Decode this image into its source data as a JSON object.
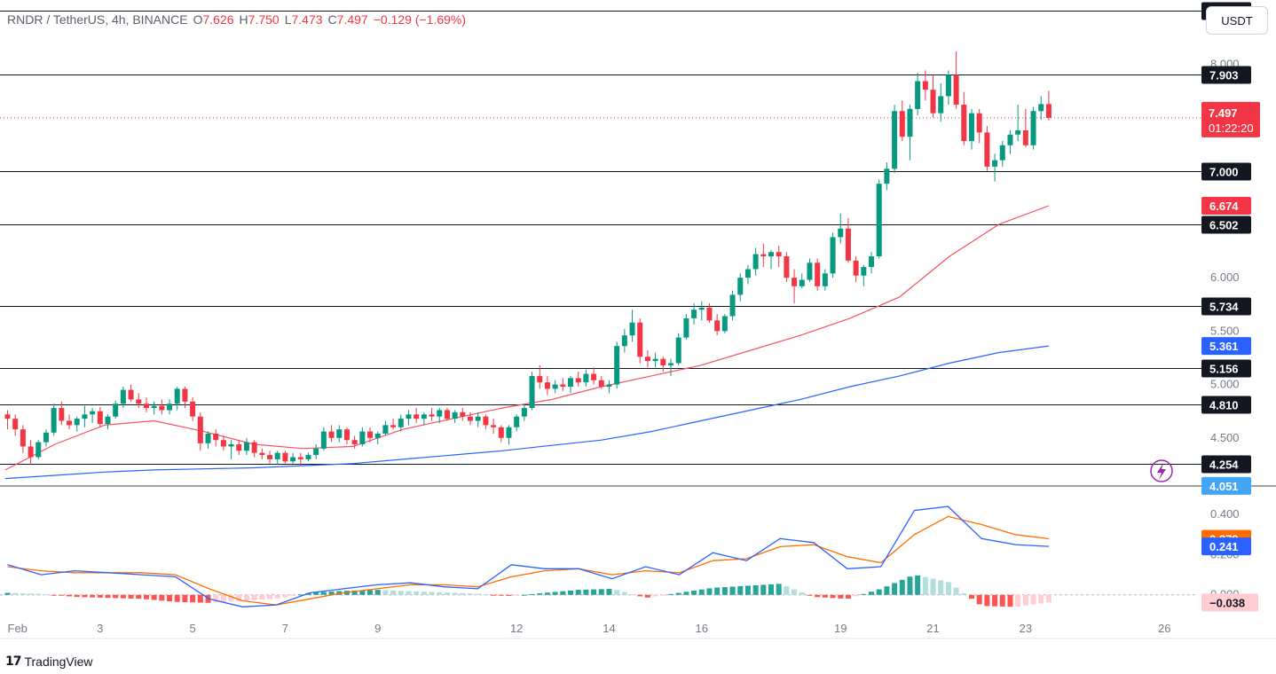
{
  "header": {
    "symbol": "RNDR / TetherUS, 4h, BINANCE",
    "open_label": "O",
    "open": "7.626",
    "high_label": "H",
    "high": "7.750",
    "low_label": "L",
    "low": "7.473",
    "close_label": "C",
    "close": "7.497",
    "change": "−0.129 (−1.69%)"
  },
  "currency_button": "USDT",
  "footer": {
    "logo_mark": "17",
    "brand": "TradingView"
  },
  "colors": {
    "up": "#089981",
    "down": "#f23645",
    "ema_short": "#f7525f",
    "ema_long": "#2962ff",
    "macd": "#2962ff",
    "signal": "#ff6d00",
    "hist_up": "#26a69a",
    "hist_down": "#ff5252",
    "hist_up_light": "#b2dfdb",
    "hist_down_light": "#ffcdd2"
  },
  "icons": {
    "alert": "lightning-icon"
  },
  "chart_data": {
    "type": "candlestick",
    "price_axis": {
      "ticks": [
        "8.000",
        "6.000",
        "5.500",
        "5.000",
        "4.500"
      ],
      "range": [
        4.05,
        8.6
      ]
    },
    "x_ticks": [
      {
        "label": "Feb",
        "idx": 0
      },
      {
        "label": "3",
        "idx": 12
      },
      {
        "label": "5",
        "idx": 24
      },
      {
        "label": "7",
        "idx": 36
      },
      {
        "label": "9",
        "idx": 48
      },
      {
        "label": "12",
        "idx": 66
      },
      {
        "label": "14",
        "idx": 78
      },
      {
        "label": "16",
        "idx": 90
      },
      {
        "label": "19",
        "idx": 108
      },
      {
        "label": "21",
        "idx": 120
      },
      {
        "label": "23",
        "idx": 132
      },
      {
        "label": "26",
        "idx": 150
      }
    ],
    "horizontal_levels": [
      {
        "value": 8.5,
        "label": "8.500"
      },
      {
        "value": 7.903,
        "label": "7.903"
      },
      {
        "value": 7.0,
        "label": "7.000"
      },
      {
        "value": 6.502,
        "label": "6.502"
      },
      {
        "value": 5.734,
        "label": "5.734"
      },
      {
        "value": 5.156,
        "label": "5.156"
      },
      {
        "value": 4.81,
        "label": "4.810"
      },
      {
        "value": 4.254,
        "label": "4.254"
      }
    ],
    "price_tags": [
      {
        "value": 7.497,
        "label": "7.497",
        "sublabel": "01:22:20",
        "kind": "last"
      },
      {
        "value": 6.674,
        "label": "6.674",
        "kind": "ema_short"
      },
      {
        "value": 5.361,
        "label": "5.361",
        "kind": "ema_long"
      },
      {
        "value": 4.051,
        "label": "4.051",
        "kind": "low"
      }
    ],
    "candles": [
      [
        4.72,
        4.76,
        4.58,
        4.68
      ],
      [
        4.68,
        4.72,
        4.52,
        4.58
      ],
      [
        4.58,
        4.62,
        4.36,
        4.42
      ],
      [
        4.42,
        4.48,
        4.25,
        4.32
      ],
      [
        4.32,
        4.48,
        4.3,
        4.46
      ],
      [
        4.46,
        4.58,
        4.42,
        4.55
      ],
      [
        4.55,
        4.82,
        4.52,
        4.78
      ],
      [
        4.78,
        4.84,
        4.62,
        4.66
      ],
      [
        4.66,
        4.72,
        4.58,
        4.62
      ],
      [
        4.62,
        4.7,
        4.56,
        4.68
      ],
      [
        4.68,
        4.8,
        4.6,
        4.72
      ],
      [
        4.72,
        4.78,
        4.64,
        4.75
      ],
      [
        4.75,
        4.79,
        4.6,
        4.63
      ],
      [
        4.63,
        4.72,
        4.58,
        4.7
      ],
      [
        4.7,
        4.85,
        4.68,
        4.82
      ],
      [
        4.82,
        4.98,
        4.78,
        4.95
      ],
      [
        4.95,
        5.0,
        4.84,
        4.86
      ],
      [
        4.86,
        4.92,
        4.78,
        4.82
      ],
      [
        4.82,
        4.88,
        4.74,
        4.78
      ],
      [
        4.78,
        4.84,
        4.72,
        4.8
      ],
      [
        4.8,
        4.86,
        4.72,
        4.76
      ],
      [
        4.76,
        4.86,
        4.72,
        4.82
      ],
      [
        4.82,
        4.98,
        4.76,
        4.96
      ],
      [
        4.96,
        4.98,
        4.78,
        4.84
      ],
      [
        4.84,
        4.88,
        4.66,
        4.7
      ],
      [
        4.7,
        4.74,
        4.38,
        4.45
      ],
      [
        4.45,
        4.56,
        4.4,
        4.54
      ],
      [
        4.54,
        4.58,
        4.42,
        4.48
      ],
      [
        4.48,
        4.52,
        4.38,
        4.42
      ],
      [
        4.42,
        4.48,
        4.3,
        4.44
      ],
      [
        4.44,
        4.48,
        4.34,
        4.38
      ],
      [
        4.38,
        4.5,
        4.34,
        4.46
      ],
      [
        4.46,
        4.48,
        4.32,
        4.36
      ],
      [
        4.36,
        4.4,
        4.3,
        4.34
      ],
      [
        4.34,
        4.38,
        4.26,
        4.3
      ],
      [
        4.3,
        4.38,
        4.25,
        4.36
      ],
      [
        4.36,
        4.38,
        4.26,
        4.28
      ],
      [
        4.28,
        4.36,
        4.26,
        4.32
      ],
      [
        4.32,
        4.36,
        4.24,
        4.3
      ],
      [
        4.3,
        4.36,
        4.28,
        4.34
      ],
      [
        4.34,
        4.44,
        4.3,
        4.4
      ],
      [
        4.4,
        4.6,
        4.38,
        4.56
      ],
      [
        4.56,
        4.62,
        4.46,
        4.5
      ],
      [
        4.5,
        4.62,
        4.46,
        4.58
      ],
      [
        4.58,
        4.6,
        4.44,
        4.48
      ],
      [
        4.48,
        4.52,
        4.4,
        4.44
      ],
      [
        4.44,
        4.6,
        4.42,
        4.56
      ],
      [
        4.56,
        4.6,
        4.46,
        4.5
      ],
      [
        4.5,
        4.56,
        4.44,
        4.54
      ],
      [
        4.54,
        4.66,
        4.52,
        4.62
      ],
      [
        4.62,
        4.68,
        4.58,
        4.6
      ],
      [
        4.6,
        4.72,
        4.56,
        4.68
      ],
      [
        4.68,
        4.76,
        4.62,
        4.72
      ],
      [
        4.72,
        4.78,
        4.64,
        4.68
      ],
      [
        4.68,
        4.74,
        4.62,
        4.72
      ],
      [
        4.72,
        4.78,
        4.66,
        4.7
      ],
      [
        4.7,
        4.78,
        4.64,
        4.76
      ],
      [
        4.76,
        4.78,
        4.66,
        4.68
      ],
      [
        4.68,
        4.76,
        4.64,
        4.74
      ],
      [
        4.74,
        4.78,
        4.66,
        4.7
      ],
      [
        4.7,
        4.74,
        4.62,
        4.66
      ],
      [
        4.66,
        4.74,
        4.6,
        4.7
      ],
      [
        4.7,
        4.72,
        4.58,
        4.62
      ],
      [
        4.62,
        4.68,
        4.54,
        4.6
      ],
      [
        4.6,
        4.62,
        4.46,
        4.5
      ],
      [
        4.5,
        4.62,
        4.44,
        4.6
      ],
      [
        4.6,
        4.72,
        4.56,
        4.7
      ],
      [
        4.7,
        4.82,
        4.66,
        4.78
      ],
      [
        4.78,
        5.12,
        4.76,
        5.08
      ],
      [
        5.08,
        5.18,
        4.96,
        5.02
      ],
      [
        5.02,
        5.08,
        4.9,
        4.96
      ],
      [
        4.96,
        5.04,
        4.92,
        5.0
      ],
      [
        5.0,
        5.06,
        4.94,
        4.98
      ],
      [
        4.98,
        5.08,
        4.92,
        5.06
      ],
      [
        5.06,
        5.12,
        4.98,
        5.02
      ],
      [
        5.02,
        5.14,
        4.98,
        5.1
      ],
      [
        5.1,
        5.16,
        5.0,
        5.04
      ],
      [
        5.04,
        5.08,
        4.96,
        4.98
      ],
      [
        4.98,
        5.04,
        4.92,
        5.0
      ],
      [
        5.0,
        5.4,
        4.96,
        5.36
      ],
      [
        5.36,
        5.52,
        5.3,
        5.46
      ],
      [
        5.46,
        5.7,
        5.4,
        5.58
      ],
      [
        5.58,
        5.62,
        5.2,
        5.26
      ],
      [
        5.26,
        5.32,
        5.16,
        5.22
      ],
      [
        5.22,
        5.3,
        5.16,
        5.24
      ],
      [
        5.24,
        5.26,
        5.12,
        5.18
      ],
      [
        5.18,
        5.24,
        5.08,
        5.2
      ],
      [
        5.2,
        5.48,
        5.18,
        5.44
      ],
      [
        5.44,
        5.66,
        5.42,
        5.62
      ],
      [
        5.62,
        5.76,
        5.56,
        5.7
      ],
      [
        5.7,
        5.78,
        5.6,
        5.72
      ],
      [
        5.72,
        5.76,
        5.58,
        5.6
      ],
      [
        5.6,
        5.66,
        5.46,
        5.5
      ],
      [
        5.5,
        5.66,
        5.48,
        5.64
      ],
      [
        5.64,
        5.88,
        5.6,
        5.84
      ],
      [
        5.84,
        6.04,
        5.78,
        6.0
      ],
      [
        6.0,
        6.12,
        5.94,
        6.08
      ],
      [
        6.08,
        6.28,
        6.02,
        6.22
      ],
      [
        6.22,
        6.32,
        6.1,
        6.2
      ],
      [
        6.2,
        6.26,
        6.08,
        6.24
      ],
      [
        6.24,
        6.3,
        6.1,
        6.2
      ],
      [
        6.2,
        6.24,
        5.96,
        6.0
      ],
      [
        6.0,
        6.08,
        5.76,
        5.92
      ],
      [
        5.92,
        6.04,
        5.9,
        5.98
      ],
      [
        5.98,
        6.18,
        5.96,
        6.14
      ],
      [
        6.14,
        6.18,
        5.88,
        5.92
      ],
      [
        5.92,
        6.08,
        5.88,
        6.04
      ],
      [
        6.04,
        6.42,
        6.0,
        6.38
      ],
      [
        6.38,
        6.6,
        6.32,
        6.46
      ],
      [
        6.46,
        6.56,
        6.14,
        6.16
      ],
      [
        6.16,
        6.2,
        5.96,
        6.02
      ],
      [
        6.02,
        6.12,
        5.92,
        6.1
      ],
      [
        6.1,
        6.24,
        6.04,
        6.2
      ],
      [
        6.2,
        6.92,
        6.18,
        6.88
      ],
      [
        6.88,
        7.08,
        6.82,
        7.02
      ],
      [
        7.02,
        7.62,
        6.98,
        7.56
      ],
      [
        7.56,
        7.66,
        7.28,
        7.32
      ],
      [
        7.32,
        7.62,
        7.1,
        7.58
      ],
      [
        7.58,
        7.92,
        7.52,
        7.84
      ],
      [
        7.84,
        7.94,
        7.66,
        7.76
      ],
      [
        7.76,
        7.9,
        7.5,
        7.54
      ],
      [
        7.54,
        7.82,
        7.46,
        7.7
      ],
      [
        7.7,
        7.94,
        7.62,
        7.9
      ],
      [
        7.9,
        8.12,
        7.58,
        7.62
      ],
      [
        7.62,
        7.74,
        7.24,
        7.28
      ],
      [
        7.28,
        7.58,
        7.2,
        7.54
      ],
      [
        7.54,
        7.58,
        7.26,
        7.36
      ],
      [
        7.36,
        7.42,
        7.0,
        7.04
      ],
      [
        7.04,
        7.16,
        6.9,
        7.1
      ],
      [
        7.1,
        7.28,
        7.04,
        7.24
      ],
      [
        7.24,
        7.38,
        7.16,
        7.34
      ],
      [
        7.34,
        7.62,
        7.28,
        7.38
      ],
      [
        7.38,
        7.58,
        7.22,
        7.24
      ],
      [
        7.24,
        7.6,
        7.2,
        7.56
      ],
      [
        7.56,
        7.7,
        7.48,
        7.626
      ],
      [
        7.626,
        7.75,
        7.473,
        7.497
      ]
    ],
    "ema_short": [
      4.2,
      4.44,
      4.62,
      4.66,
      4.56,
      4.44,
      4.4,
      4.42,
      4.58,
      4.68,
      4.78,
      4.86,
      4.98,
      5.08,
      5.18,
      5.32,
      5.46,
      5.62,
      5.82,
      6.2,
      6.5,
      6.674
    ],
    "ema_long": [
      4.12,
      4.15,
      4.18,
      4.2,
      4.21,
      4.22,
      4.24,
      4.26,
      4.3,
      4.34,
      4.38,
      4.43,
      4.48,
      4.56,
      4.66,
      4.76,
      4.86,
      4.98,
      5.08,
      5.2,
      5.3,
      5.361
    ],
    "macd_panel": {
      "ticks": [
        "0.400",
        "0.200",
        "0.000"
      ],
      "range": [
        -0.085,
        0.48
      ],
      "tags": [
        {
          "value": 0.279,
          "label": "0.279",
          "kind": "signal"
        },
        {
          "value": 0.241,
          "label": "0.241",
          "kind": "macd"
        },
        {
          "value": -0.038,
          "label": "−0.038",
          "kind": "hist"
        }
      ],
      "macd": [
        0.15,
        0.1,
        0.12,
        0.11,
        0.1,
        0.09,
        -0.02,
        -0.06,
        -0.05,
        0.01,
        0.03,
        0.05,
        0.06,
        0.04,
        0.03,
        0.15,
        0.13,
        0.13,
        0.08,
        0.14,
        0.1,
        0.21,
        0.17,
        0.28,
        0.26,
        0.13,
        0.14,
        0.42,
        0.44,
        0.28,
        0.25,
        0.241
      ],
      "signal": [
        0.14,
        0.12,
        0.11,
        0.11,
        0.11,
        0.1,
        0.03,
        -0.03,
        -0.05,
        -0.02,
        0.01,
        0.03,
        0.05,
        0.05,
        0.04,
        0.09,
        0.12,
        0.13,
        0.1,
        0.12,
        0.11,
        0.17,
        0.18,
        0.24,
        0.25,
        0.19,
        0.16,
        0.3,
        0.39,
        0.35,
        0.3,
        0.279
      ],
      "hist": [
        0.01,
        0.005,
        -0.01,
        -0.015,
        -0.02,
        -0.035,
        -0.04,
        -0.03,
        -0.02,
        0.01,
        0.02,
        0.025,
        0.018,
        0.012,
        0.005,
        -0.006,
        0.01,
        0.025,
        0.03,
        -0.015,
        0.01,
        0.035,
        0.045,
        0.055,
        -0.01,
        -0.02,
        0.03,
        0.1,
        0.065,
        -0.055,
        -0.06,
        -0.038
      ]
    }
  }
}
